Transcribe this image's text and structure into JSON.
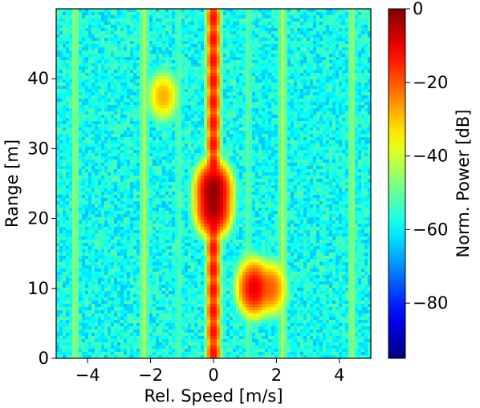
{
  "chart_data": {
    "type": "heatmap",
    "title": "",
    "xlabel": "Rel. Speed [m/s]",
    "ylabel": "Range [m]",
    "xlim": [
      -5,
      5
    ],
    "ylim": [
      0,
      50
    ],
    "xticks": [
      -4,
      -2,
      0,
      2,
      4
    ],
    "xtick_labels": [
      "−4",
      "−2",
      "0",
      "2",
      "4"
    ],
    "yticks": [
      0,
      10,
      20,
      30,
      40
    ],
    "ytick_labels": [
      "0",
      "10",
      "20",
      "30",
      "40"
    ],
    "colorbar": {
      "label": "Norm. Power [dB]",
      "colormap": "jet",
      "vmin": -95,
      "vmax": 0,
      "ticks": [
        0,
        -20,
        -40,
        -60,
        -80
      ],
      "tick_labels": [
        "0",
        "−20",
        "−40",
        "−60",
        "−80"
      ]
    },
    "background_level_db": -58,
    "vertical_stripes": [
      {
        "x": 0.0,
        "level_db": -12
      },
      {
        "x": -2.2,
        "level_db": -42
      },
      {
        "x": 2.2,
        "level_db": -42
      },
      {
        "x": -4.4,
        "level_db": -45
      },
      {
        "x": 4.4,
        "level_db": -45
      },
      {
        "x": 1.1,
        "level_db": -50
      },
      {
        "x": -1.1,
        "level_db": -52
      }
    ],
    "targets": [
      {
        "x": 0.0,
        "y": 24,
        "level_db": -2
      },
      {
        "x": 0.0,
        "y": 21.5,
        "level_db": -4
      },
      {
        "x": 1.3,
        "y": 10,
        "level_db": -10
      },
      {
        "x": 1.8,
        "y": 10,
        "level_db": -20
      },
      {
        "x": -1.6,
        "y": 37.5,
        "level_db": -28
      },
      {
        "x": 1.2,
        "y": 12,
        "level_db": -36
      }
    ],
    "grid": false
  }
}
